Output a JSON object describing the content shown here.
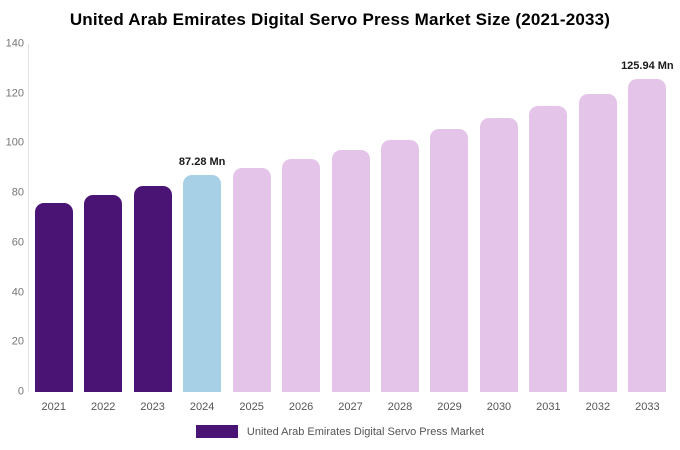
{
  "title": "United Arab Emirates Digital Servo Press Market Size (2021-2033)",
  "legend": {
    "label": "United Arab Emirates Digital Servo Press Market",
    "swatch_color": "#4a1475"
  },
  "colors": {
    "dark": "#4a1475",
    "highlight": "#a7cfe5",
    "light": "#e5c4e9"
  },
  "chart_data": {
    "type": "bar",
    "title": "United Arab Emirates Digital Servo Press Market Size (2021-2033)",
    "categories": [
      "2021",
      "2022",
      "2023",
      "2024",
      "2025",
      "2026",
      "2027",
      "2028",
      "2029",
      "2030",
      "2031",
      "2032",
      "2033"
    ],
    "values": [
      76,
      79.3,
      82.8,
      87.28,
      90.2,
      93.6,
      97.4,
      101.5,
      105.8,
      110.3,
      115,
      119.9,
      125.94
    ],
    "bar_roles": [
      "dark",
      "dark",
      "dark",
      "highlight",
      "light",
      "light",
      "light",
      "light",
      "light",
      "light",
      "light",
      "light",
      "light"
    ],
    "annotations": [
      {
        "index": 3,
        "text": "87.28 Mn"
      },
      {
        "index": 12,
        "text": "125.94 Mn"
      }
    ],
    "xlabel": "",
    "ylabel": "",
    "ylim": [
      0,
      140
    ],
    "yticks": [
      0,
      20,
      40,
      60,
      80,
      100,
      120,
      140
    ],
    "grid": false,
    "legend_position": "bottom"
  }
}
